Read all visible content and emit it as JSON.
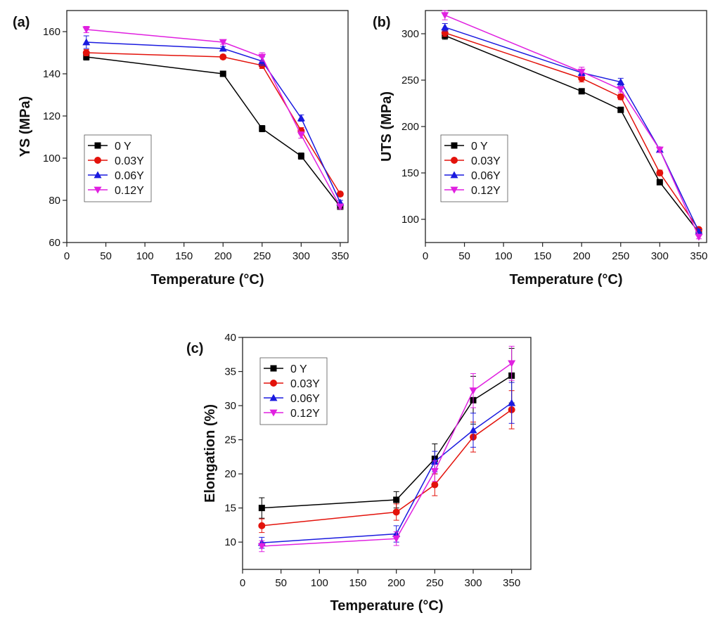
{
  "figure": {
    "background": "#ffffff",
    "series_colors": {
      "0 Y": "#000000",
      "0.03Y": "#e3120b",
      "0.06Y": "#1a1adf",
      "0.12Y": "#e020e0"
    }
  },
  "chart_data": [
    {
      "type": "line",
      "panel_label": "(a)",
      "title": "",
      "xlabel": "Temperature (°C)",
      "ylabel": "YS (MPa)",
      "xlim": [
        0,
        360
      ],
      "ylim": [
        60,
        170
      ],
      "xticks": [
        0,
        50,
        100,
        150,
        200,
        250,
        300,
        350
      ],
      "yticks": [
        60,
        80,
        100,
        120,
        140,
        160
      ],
      "x": [
        25,
        200,
        250,
        300,
        350
      ],
      "grid": false,
      "legend_position": "lower-left",
      "series": [
        {
          "name": "0 Y",
          "color": "#000000",
          "marker": "square",
          "values": [
            148,
            140,
            114,
            101,
            77
          ],
          "errors": [
            1.5,
            1.2,
            1.5,
            1.5,
            1
          ]
        },
        {
          "name": "0.03Y",
          "color": "#e3120b",
          "marker": "circle",
          "values": [
            150,
            148,
            144,
            113,
            83
          ],
          "errors": [
            1.5,
            1,
            1.5,
            1.5,
            1
          ]
        },
        {
          "name": "0.06Y",
          "color": "#1a1adf",
          "marker": "triangle-up",
          "values": [
            155,
            152,
            146,
            119,
            79
          ],
          "errors": [
            3,
            1,
            2,
            1.5,
            1
          ]
        },
        {
          "name": "0.12Y",
          "color": "#e020e0",
          "marker": "triangle-down",
          "values": [
            161,
            155,
            148,
            111,
            77
          ],
          "errors": [
            1.5,
            1,
            2,
            1.5,
            1
          ]
        }
      ]
    },
    {
      "type": "line",
      "panel_label": "(b)",
      "title": "",
      "xlabel": "Temperature (°C)",
      "ylabel": "UTS (MPa)",
      "xlim": [
        0,
        360
      ],
      "ylim": [
        75,
        325
      ],
      "xticks": [
        0,
        50,
        100,
        150,
        200,
        250,
        300,
        350
      ],
      "yticks": [
        100,
        150,
        200,
        250,
        300
      ],
      "x": [
        25,
        200,
        250,
        300,
        350
      ],
      "grid": false,
      "legend_position": "lower-left",
      "series": [
        {
          "name": "0 Y",
          "color": "#000000",
          "marker": "square",
          "values": [
            298,
            238,
            218,
            140,
            86
          ],
          "errors": [
            4,
            2,
            2,
            2,
            2
          ]
        },
        {
          "name": "0.03Y",
          "color": "#e3120b",
          "marker": "circle",
          "values": [
            301,
            252,
            232,
            150,
            89
          ],
          "errors": [
            4,
            4,
            3,
            3,
            2
          ]
        },
        {
          "name": "0.06Y",
          "color": "#1a1adf",
          "marker": "triangle-up",
          "values": [
            307,
            258,
            248,
            175,
            87
          ],
          "errors": [
            4,
            3,
            4,
            2,
            2
          ]
        },
        {
          "name": "0.12Y",
          "color": "#e020e0",
          "marker": "triangle-down",
          "values": [
            320,
            259,
            240,
            175,
            81
          ],
          "errors": [
            5,
            5,
            3,
            3,
            2
          ]
        }
      ]
    },
    {
      "type": "line",
      "panel_label": "(c)",
      "title": "",
      "xlabel": "Temperature (°C)",
      "ylabel": "Elongation (%)",
      "xlim": [
        0,
        375
      ],
      "ylim": [
        6,
        40
      ],
      "xticks": [
        0,
        50,
        100,
        150,
        200,
        250,
        300,
        350
      ],
      "yticks": [
        10,
        15,
        20,
        25,
        30,
        35,
        40
      ],
      "x": [
        25,
        200,
        250,
        300,
        350
      ],
      "grid": false,
      "legend_position": "upper-left",
      "series": [
        {
          "name": "0 Y",
          "color": "#000000",
          "marker": "square",
          "values": [
            15.0,
            16.2,
            22.2,
            30.8,
            34.4
          ],
          "errors": [
            1.5,
            1.2,
            2.2,
            3.5,
            4
          ]
        },
        {
          "name": "0.03Y",
          "color": "#e3120b",
          "marker": "circle",
          "values": [
            12.4,
            14.4,
            18.4,
            25.4,
            29.4
          ],
          "errors": [
            1.0,
            1.2,
            1.6,
            2.2,
            2.8
          ]
        },
        {
          "name": "0.06Y",
          "color": "#1a1adf",
          "marker": "triangle-up",
          "values": [
            9.9,
            11.2,
            21.8,
            26.4,
            30.4
          ],
          "errors": [
            0.8,
            1.2,
            1.5,
            2.5,
            3
          ]
        },
        {
          "name": "0.12Y",
          "color": "#e020e0",
          "marker": "triangle-down",
          "values": [
            9.4,
            10.5,
            20.4,
            32.2,
            36.2
          ],
          "errors": [
            0.8,
            1.0,
            1.5,
            2.5,
            2.5
          ]
        }
      ]
    }
  ]
}
